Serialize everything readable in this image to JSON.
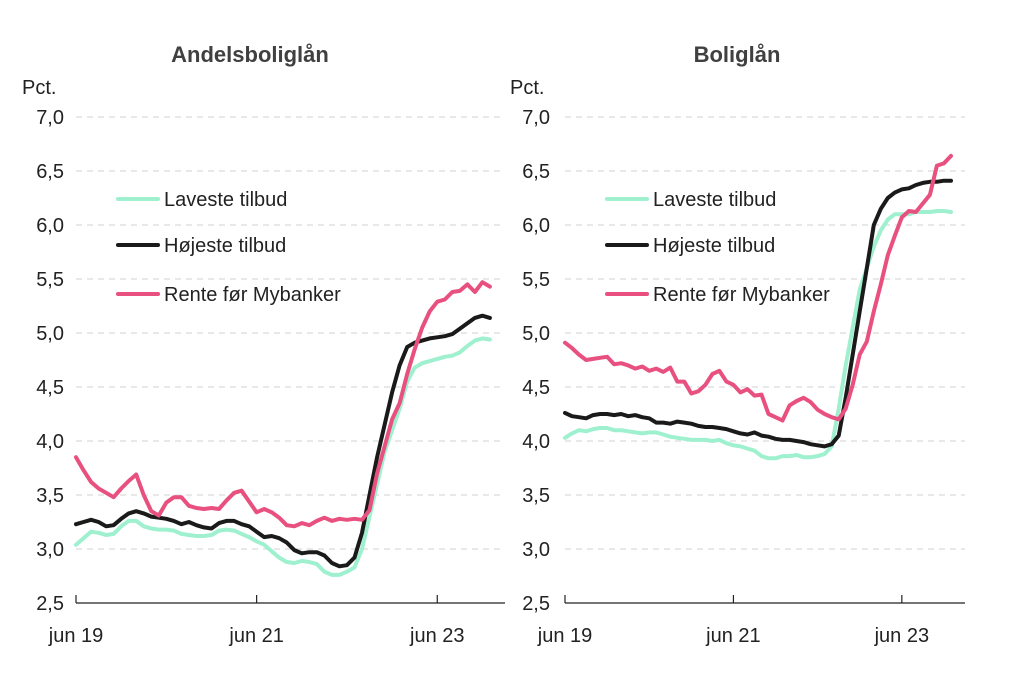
{
  "chart_data": [
    {
      "type": "line",
      "title": "Andelsboliglån",
      "ylabel": "Pct.",
      "xlabel": "",
      "ylim": [
        2.5,
        7.0
      ],
      "yticks": [
        "7,0",
        "6,5",
        "6,0",
        "5,5",
        "5,0",
        "4,5",
        "4,0",
        "3,5",
        "3,0",
        "2,5"
      ],
      "xticks": [
        "jun 19",
        "jun 21",
        "jun 23"
      ],
      "x_index_range": [
        0,
        57
      ],
      "xtick_index": [
        0,
        24,
        48
      ],
      "grid": true,
      "legend_position": "left",
      "series": [
        {
          "name": "Laveste tilbud",
          "color": "#9ef0cf",
          "values": [
            3.04,
            3.1,
            3.16,
            3.15,
            3.13,
            3.14,
            3.21,
            3.26,
            3.26,
            3.21,
            3.19,
            3.18,
            3.18,
            3.17,
            3.14,
            3.13,
            3.12,
            3.12,
            3.13,
            3.17,
            3.18,
            3.17,
            3.14,
            3.11,
            3.07,
            3.04,
            2.98,
            2.92,
            2.88,
            2.87,
            2.89,
            2.88,
            2.86,
            2.79,
            2.76,
            2.76,
            2.79,
            2.83,
            3.0,
            3.3,
            3.6,
            3.9,
            4.1,
            4.3,
            4.55,
            4.68,
            4.72,
            4.74,
            4.76,
            4.78,
            4.79,
            4.82,
            4.88,
            4.93,
            4.95,
            4.94
          ]
        },
        {
          "name": "Højeste tilbud",
          "color": "#1a1a1a",
          "values": [
            3.23,
            3.25,
            3.27,
            3.25,
            3.21,
            3.22,
            3.28,
            3.33,
            3.35,
            3.33,
            3.3,
            3.29,
            3.28,
            3.26,
            3.23,
            3.25,
            3.22,
            3.2,
            3.19,
            3.24,
            3.26,
            3.26,
            3.23,
            3.21,
            3.16,
            3.11,
            3.12,
            3.1,
            3.06,
            2.99,
            2.96,
            2.97,
            2.97,
            2.94,
            2.87,
            2.84,
            2.85,
            2.92,
            3.15,
            3.5,
            3.85,
            4.15,
            4.45,
            4.7,
            4.87,
            4.91,
            4.93,
            4.95,
            4.96,
            4.97,
            4.99,
            5.04,
            5.09,
            5.14,
            5.16,
            5.14
          ]
        },
        {
          "name": "Rente før Mybanker",
          "color": "#e8507f",
          "values": [
            3.85,
            3.73,
            3.62,
            3.56,
            3.52,
            3.48,
            3.56,
            3.63,
            3.69,
            3.5,
            3.35,
            3.31,
            3.43,
            3.48,
            3.48,
            3.4,
            3.38,
            3.37,
            3.38,
            3.37,
            3.45,
            3.52,
            3.54,
            3.44,
            3.34,
            3.37,
            3.34,
            3.29,
            3.22,
            3.21,
            3.24,
            3.22,
            3.26,
            3.29,
            3.26,
            3.28,
            3.27,
            3.28,
            3.27,
            3.36,
            3.7,
            3.95,
            4.2,
            4.35,
            4.62,
            4.85,
            5.05,
            5.2,
            5.29,
            5.31,
            5.38,
            5.39,
            5.45,
            5.38,
            5.47,
            5.43
          ]
        }
      ]
    },
    {
      "type": "line",
      "title": "Boliglån",
      "ylabel": "Pct.",
      "xlabel": "",
      "ylim": [
        2.5,
        7.0
      ],
      "yticks": [
        "7,0",
        "6,5",
        "6,0",
        "5,5",
        "5,0",
        "4,5",
        "4,0",
        "3,5",
        "3,0",
        "2,5"
      ],
      "xticks": [
        "jun 19",
        "jun 21",
        "jun 23"
      ],
      "x_index_range": [
        0,
        57
      ],
      "xtick_index": [
        0,
        24,
        48
      ],
      "grid": true,
      "legend_position": "left",
      "series": [
        {
          "name": "Laveste tilbud",
          "color": "#9ef0cf",
          "values": [
            4.03,
            4.07,
            4.1,
            4.09,
            4.11,
            4.12,
            4.12,
            4.1,
            4.1,
            4.09,
            4.08,
            4.07,
            4.08,
            4.08,
            4.06,
            4.04,
            4.03,
            4.02,
            4.01,
            4.01,
            4.01,
            4.0,
            4.01,
            3.98,
            3.96,
            3.95,
            3.93,
            3.91,
            3.86,
            3.84,
            3.84,
            3.86,
            3.86,
            3.87,
            3.85,
            3.85,
            3.86,
            3.88,
            3.95,
            4.3,
            4.7,
            5.05,
            5.4,
            5.6,
            5.8,
            5.95,
            6.05,
            6.1,
            6.1,
            6.1,
            6.12,
            6.12,
            6.12,
            6.13,
            6.13,
            6.12
          ]
        },
        {
          "name": "Højeste tilbud",
          "color": "#1a1a1a",
          "values": [
            4.26,
            4.23,
            4.22,
            4.21,
            4.24,
            4.25,
            4.25,
            4.24,
            4.25,
            4.23,
            4.24,
            4.22,
            4.21,
            4.17,
            4.17,
            4.16,
            4.18,
            4.17,
            4.16,
            4.14,
            4.13,
            4.13,
            4.12,
            4.11,
            4.09,
            4.07,
            4.06,
            4.08,
            4.05,
            4.04,
            4.02,
            4.01,
            4.01,
            4.0,
            3.99,
            3.97,
            3.96,
            3.95,
            3.97,
            4.05,
            4.4,
            4.8,
            5.2,
            5.6,
            6.0,
            6.15,
            6.25,
            6.3,
            6.33,
            6.34,
            6.37,
            6.39,
            6.4,
            6.4,
            6.41,
            6.41
          ]
        },
        {
          "name": "Rente før Mybanker",
          "color": "#e8507f",
          "values": [
            4.91,
            4.86,
            4.8,
            4.75,
            4.76,
            4.77,
            4.78,
            4.71,
            4.72,
            4.7,
            4.67,
            4.69,
            4.65,
            4.67,
            4.64,
            4.68,
            4.55,
            4.55,
            4.44,
            4.46,
            4.52,
            4.62,
            4.65,
            4.55,
            4.52,
            4.45,
            4.48,
            4.42,
            4.43,
            4.25,
            4.22,
            4.19,
            4.33,
            4.37,
            4.4,
            4.36,
            4.29,
            4.25,
            4.22,
            4.2,
            4.3,
            4.52,
            4.8,
            4.92,
            5.2,
            5.45,
            5.72,
            5.9,
            6.07,
            6.13,
            6.12,
            6.2,
            6.28,
            6.55,
            6.57,
            6.64
          ]
        }
      ]
    }
  ]
}
